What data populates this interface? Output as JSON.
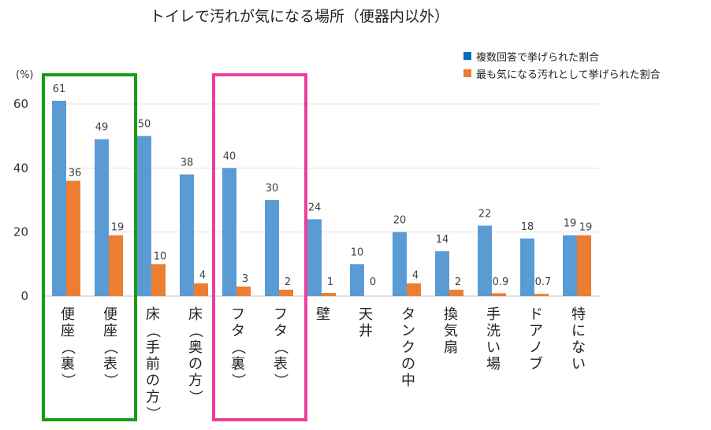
{
  "chart_data": {
    "type": "bar",
    "title": "トイレで汚れが気になる場所（便器内以外）",
    "ylabel": "(%)",
    "ylim": [
      0,
      60
    ],
    "yticks": [
      0,
      20,
      40,
      60
    ],
    "grid": true,
    "legend_position": "top-right",
    "categories": [
      "便座（裏）",
      "便座（表）",
      "床（手前の方）",
      "床（奥の方）",
      "フタ（裏）",
      "フタ（表）",
      "壁",
      "天井",
      "タンクの中",
      "換気扇",
      "手洗い場",
      "ドアノブ",
      "特にない"
    ],
    "series": [
      {
        "name": "複数回答で挙げられた割合",
        "color": "#5b9bd5",
        "values": [
          61,
          49,
          50,
          38,
          40,
          30,
          24,
          10,
          20,
          14,
          22,
          18,
          19
        ],
        "labels": [
          "61",
          "49",
          "50",
          "38",
          "40",
          "30",
          "24",
          "10",
          "20",
          "14",
          "22",
          "18",
          "19"
        ]
      },
      {
        "name": "最も気になる汚れとして挙げられた割合",
        "color": "#ed7d31",
        "values": [
          36,
          19,
          10,
          4,
          3,
          2,
          1,
          0,
          4,
          2,
          0.9,
          0.7,
          19
        ],
        "labels": [
          "36",
          "19",
          "10",
          "4",
          "3",
          "2",
          "1",
          "0",
          "4",
          "2",
          "0.9",
          "0.7",
          "19"
        ]
      }
    ],
    "highlight_boxes": [
      {
        "categories": [
          0,
          1
        ],
        "color": "#159e15"
      },
      {
        "categories": [
          4,
          5
        ],
        "color": "#f03c9b"
      }
    ]
  }
}
